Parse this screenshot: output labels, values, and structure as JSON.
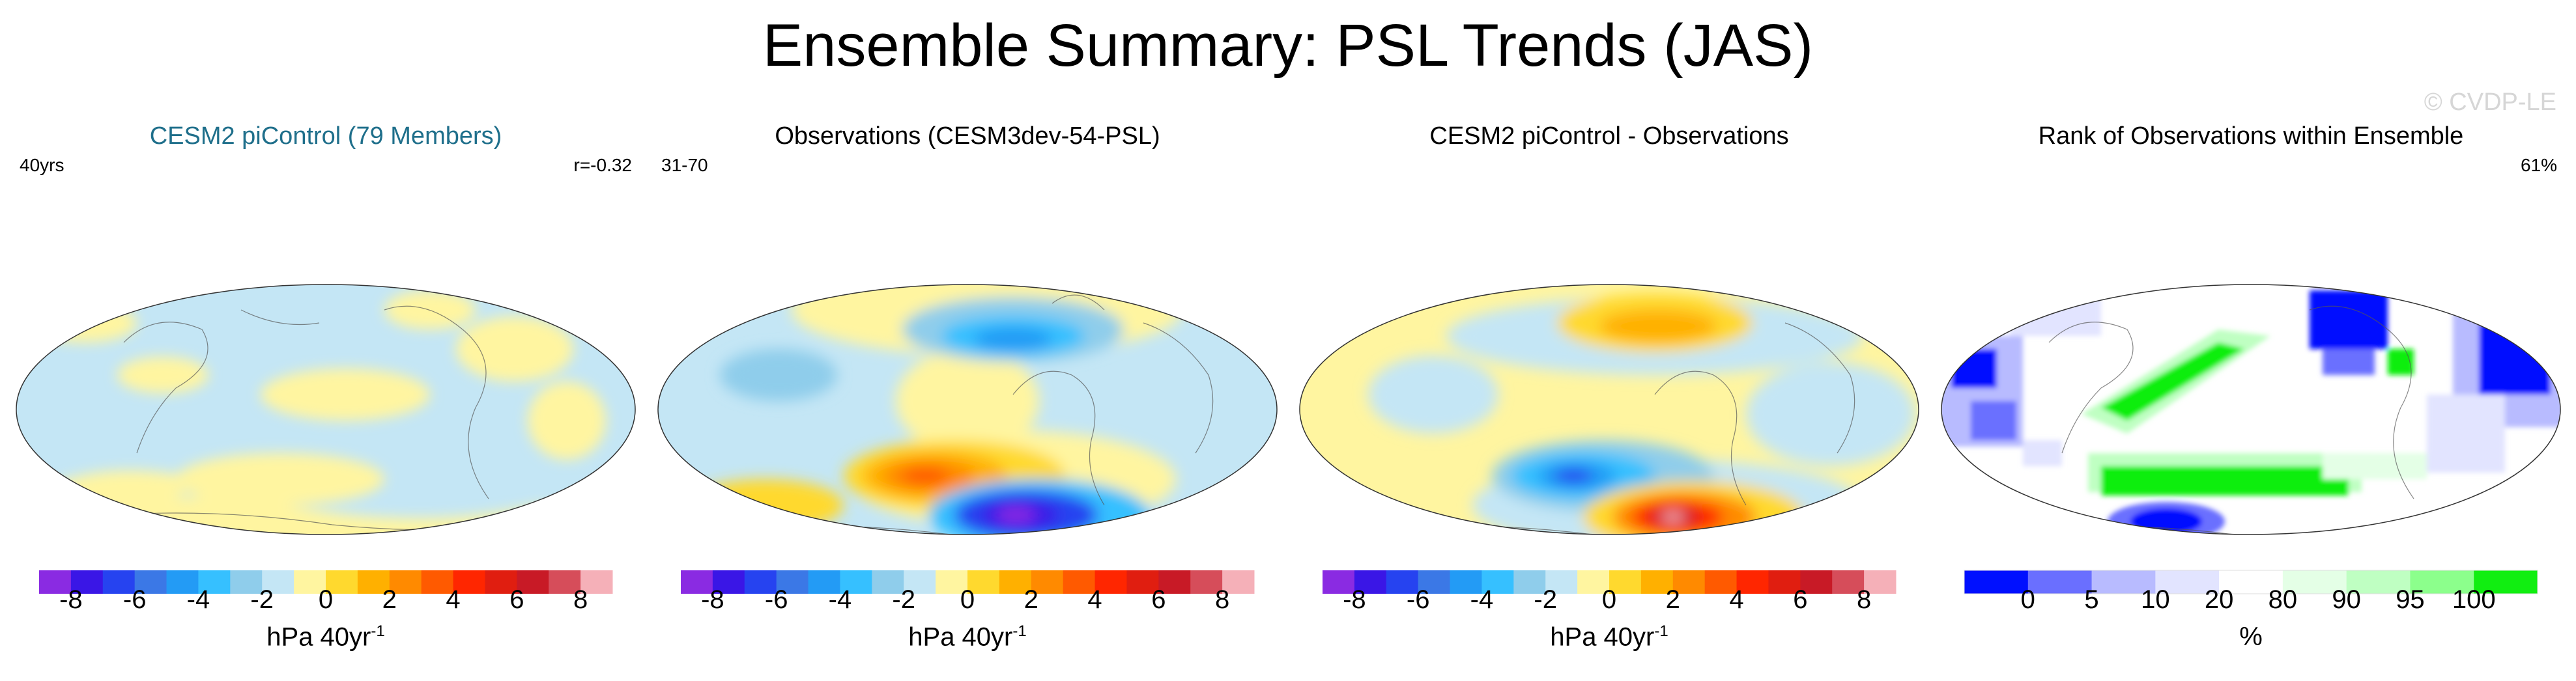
{
  "title": "Ensemble Summary: PSL Trends (JAS)",
  "watermark": "© CVDP-LE",
  "colors": {
    "trend_scale": [
      "#8a2be2",
      "#3a16e6",
      "#2643f0",
      "#3b78e6",
      "#239bf5",
      "#36c0ff",
      "#8fcdeb",
      "#c4e6f5",
      "#fff5a0",
      "#ffd92e",
      "#ffb000",
      "#ff8a00",
      "#ff5a00",
      "#ff2600",
      "#e01e10",
      "#c81a26",
      "#d64d5a",
      "#f5b0b8"
    ],
    "rank_scale": [
      "#0010ff",
      "#6a6fff",
      "#b8bbff",
      "#e2e4ff",
      "#ffffff",
      "#e4ffe6",
      "#bfffc2",
      "#8cff8c",
      "#11ee11"
    ]
  },
  "chart_data": [
    {
      "type": "heatmap",
      "title": "CESM2 piControl (79 Members)",
      "left_label": "40yrs",
      "right_label": "r=-0.32",
      "units": "hPa 40yr",
      "units_sup": "-1",
      "colorbar_ticks": [
        "-8",
        "-6",
        "-4",
        "-2",
        "0",
        "2",
        "4",
        "6",
        "8"
      ],
      "value_range": [
        -9,
        9
      ]
    },
    {
      "type": "heatmap",
      "title": "Observations (CESM3dev-54-PSL)",
      "left_label": "31-70",
      "right_label": "",
      "units": "hPa 40yr",
      "units_sup": "-1",
      "colorbar_ticks": [
        "-8",
        "-6",
        "-4",
        "-2",
        "0",
        "2",
        "4",
        "6",
        "8"
      ],
      "value_range": [
        -9,
        9
      ]
    },
    {
      "type": "heatmap",
      "title": "CESM2 piControl - Observations",
      "left_label": "",
      "right_label": "",
      "units": "hPa 40yr",
      "units_sup": "-1",
      "colorbar_ticks": [
        "-8",
        "-6",
        "-4",
        "-2",
        "0",
        "2",
        "4",
        "6",
        "8"
      ],
      "value_range": [
        -9,
        9
      ]
    },
    {
      "type": "heatmap",
      "title": "Rank of Observations within Ensemble",
      "left_label": "",
      "right_label": "61%",
      "units": "%",
      "colorbar_ticks": [
        "0",
        "5",
        "10",
        "20",
        "80",
        "90",
        "95",
        "100"
      ],
      "rank_levels": [
        0,
        5,
        10,
        20,
        80,
        90,
        95,
        100
      ]
    }
  ]
}
